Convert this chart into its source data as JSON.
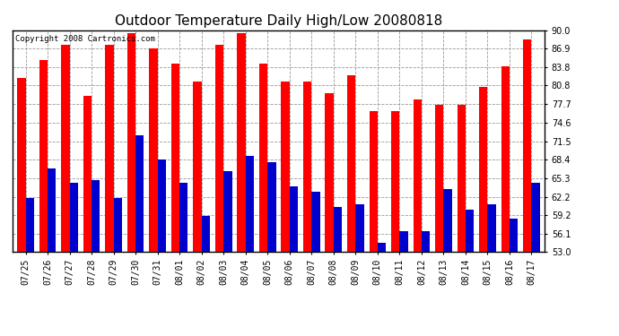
{
  "title": "Outdoor Temperature Daily High/Low 20080818",
  "copyright": "Copyright 2008 Cartronics.com",
  "dates": [
    "07/25",
    "07/26",
    "07/27",
    "07/28",
    "07/29",
    "07/30",
    "07/31",
    "08/01",
    "08/02",
    "08/03",
    "08/04",
    "08/05",
    "08/06",
    "08/07",
    "08/08",
    "08/09",
    "08/10",
    "08/11",
    "08/12",
    "08/13",
    "08/14",
    "08/15",
    "08/16",
    "08/17"
  ],
  "highs": [
    82.0,
    85.0,
    87.5,
    79.0,
    87.5,
    89.5,
    87.0,
    84.5,
    81.5,
    87.5,
    89.5,
    84.5,
    81.5,
    81.5,
    79.5,
    82.5,
    76.5,
    76.5,
    78.5,
    77.5,
    77.5,
    80.5,
    84.0,
    88.5
  ],
  "lows": [
    62.0,
    67.0,
    64.5,
    65.0,
    62.0,
    72.5,
    68.5,
    64.5,
    59.0,
    66.5,
    69.0,
    68.0,
    64.0,
    63.0,
    60.5,
    61.0,
    54.5,
    56.5,
    56.5,
    63.5,
    60.0,
    61.0,
    58.5,
    64.5
  ],
  "high_color": "#ff0000",
  "low_color": "#0000cc",
  "bg_color": "#ffffff",
  "plot_bg_color": "#ffffff",
  "grid_color": "#999999",
  "ymin": 53.0,
  "ymax": 90.0,
  "yticks": [
    53.0,
    56.1,
    59.2,
    62.2,
    65.3,
    68.4,
    71.5,
    74.6,
    77.7,
    80.8,
    83.8,
    86.9,
    90.0
  ],
  "bar_width": 0.38,
  "title_fontsize": 11,
  "tick_fontsize": 7,
  "copyright_fontsize": 6.5
}
